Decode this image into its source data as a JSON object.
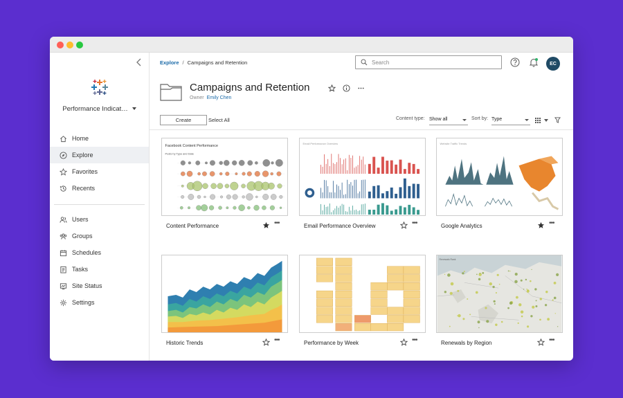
{
  "sidebar": {
    "collapse_icon": "chevron-left-icon",
    "site_selector": "Performance Indicat…",
    "nav_primary": [
      {
        "label": "Home",
        "icon": "home-icon",
        "active": false
      },
      {
        "label": "Explore",
        "icon": "compass-icon",
        "active": true
      },
      {
        "label": "Favorites",
        "icon": "star-outline-icon",
        "active": false
      },
      {
        "label": "Recents",
        "icon": "history-icon",
        "active": false
      }
    ],
    "nav_admin": [
      {
        "label": "Users",
        "icon": "users-icon"
      },
      {
        "label": "Groups",
        "icon": "groups-icon"
      },
      {
        "label": "Schedules",
        "icon": "calendar-icon"
      },
      {
        "label": "Tasks",
        "icon": "tasks-icon"
      },
      {
        "label": "Site Status",
        "icon": "site-status-icon"
      },
      {
        "label": "Settings",
        "icon": "gear-icon"
      }
    ]
  },
  "header": {
    "breadcrumb": {
      "root": "Explore",
      "separator": "/",
      "current": "Campaigns and Retention"
    },
    "search_placeholder": "Search",
    "avatar_initials": "EC"
  },
  "project": {
    "title": "Campaigns and Retention",
    "owner_label": "Owner",
    "owner_name": "Emily Chen"
  },
  "toolbar": {
    "create_label": "Create",
    "select_all_label": "Select All",
    "content_type_label": "Content type:",
    "content_type_value": "Show all",
    "sort_by_label": "Sort by:",
    "sort_by_value": "Type"
  },
  "cards": [
    {
      "label": "Content Performance",
      "favorite": true,
      "thumb_title": "Facebook Content Performance",
      "thumb_subtitle": "Posts by Type and Date"
    },
    {
      "label": "Email Performance Overview",
      "favorite": false,
      "thumb_title": "Email Performance Overview"
    },
    {
      "label": "Google Analytics",
      "favorite": true,
      "thumb_title": "Website Traffic Trends"
    },
    {
      "label": "Historic Trends",
      "favorite": false
    },
    {
      "label": "Performance by Week",
      "favorite": false
    },
    {
      "label": "Renewals by Region",
      "favorite": false,
      "thumb_title": "Renewals Rank"
    }
  ],
  "colors": {
    "background": "#5b2ecf",
    "link": "#1a6aa8",
    "avatar": "#1f4a65"
  }
}
